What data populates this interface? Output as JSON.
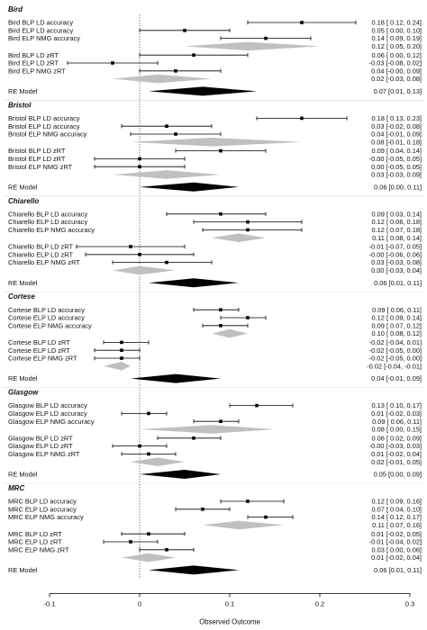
{
  "chart_data": {
    "type": "forest",
    "xlabel": "Observed Outcome",
    "xlim": [
      -0.1,
      0.3
    ],
    "x_ticks": [
      "-0.1",
      "0",
      "0.1",
      "0.2",
      "0.3"
    ],
    "reference_line": 0,
    "colors": {
      "point": "#000000",
      "subtotal_diamond": "#c0c0c0",
      "re_diamond": "#000000",
      "ref_line": "#666666"
    },
    "groups": [
      {
        "name": "Bird",
        "rows": [
          {
            "label": "Bird BLP LD accuracy",
            "type": "point",
            "est": 0.18,
            "lo": 0.12,
            "hi": 0.24,
            "ci": "0.18 [ 0.12, 0.24]"
          },
          {
            "label": "Bird ELP LD accuracy",
            "type": "point",
            "est": 0.05,
            "lo": 0.0,
            "hi": 0.1,
            "ci": "0.05 [ 0.00, 0.10]"
          },
          {
            "label": "Bird ELP NMG accuracy",
            "type": "point",
            "est": 0.14,
            "lo": 0.09,
            "hi": 0.19,
            "ci": "0.14 [ 0.09, 0.19]"
          },
          {
            "label": "",
            "type": "subtotal",
            "est": 0.12,
            "lo": 0.05,
            "hi": 0.2,
            "ci": "0.12 [ 0.05, 0.20]"
          },
          {
            "label": "Bird BLP LD zRT",
            "type": "point",
            "est": 0.06,
            "lo": 0.0,
            "hi": 0.12,
            "ci": "0.06 [ 0.00, 0.12]"
          },
          {
            "label": "Bird ELP LD zRT",
            "type": "point",
            "est": -0.03,
            "lo": -0.08,
            "hi": 0.02,
            "ci": "-0.03 [-0.08, 0.02]"
          },
          {
            "label": "Bird ELP NMG zRT",
            "type": "point",
            "est": 0.04,
            "lo": 0.0,
            "hi": 0.09,
            "ci": "0.04 [-0.00, 0.09]"
          },
          {
            "label": "",
            "type": "subtotal",
            "est": 0.02,
            "lo": -0.03,
            "hi": 0.08,
            "ci": "0.02 [-0.03, 0.08]"
          },
          {
            "label": "RE Model",
            "type": "re",
            "est": 0.07,
            "lo": 0.01,
            "hi": 0.13,
            "ci": "0.07 [0.01, 0.13]"
          }
        ]
      },
      {
        "name": "Bristol",
        "rows": [
          {
            "label": "Bristol BLP LD accuracy",
            "type": "point",
            "est": 0.18,
            "lo": 0.13,
            "hi": 0.23,
            "ci": "0.18 [ 0.13, 0.23]"
          },
          {
            "label": "Bristol ELP LD accuracy",
            "type": "point",
            "est": 0.03,
            "lo": -0.02,
            "hi": 0.08,
            "ci": "0.03 [-0.02, 0.08]"
          },
          {
            "label": "Bristol ELP NMG accuracy",
            "type": "point",
            "est": 0.04,
            "lo": -0.01,
            "hi": 0.09,
            "ci": "0.04 [-0.01, 0.09]"
          },
          {
            "label": "",
            "type": "subtotal",
            "est": 0.08,
            "lo": -0.01,
            "hi": 0.18,
            "ci": "0.08 [-0.01, 0.18]"
          },
          {
            "label": "Bristol BLP LD zRT",
            "type": "point",
            "est": 0.09,
            "lo": 0.04,
            "hi": 0.14,
            "ci": "0.09 [ 0.04, 0.14]"
          },
          {
            "label": "Bristol ELP LD zRT",
            "type": "point",
            "est": 0.0,
            "lo": -0.05,
            "hi": 0.05,
            "ci": "-0.00 [-0.05, 0.05]"
          },
          {
            "label": "Bristol ELP NMG zRT",
            "type": "point",
            "est": 0.0,
            "lo": -0.05,
            "hi": 0.05,
            "ci": "0.00 [-0.05, 0.05]"
          },
          {
            "label": "",
            "type": "subtotal",
            "est": 0.03,
            "lo": -0.03,
            "hi": 0.09,
            "ci": "0.03 [-0.03, 0.09]"
          },
          {
            "label": "RE Model",
            "type": "re",
            "est": 0.06,
            "lo": 0.0,
            "hi": 0.11,
            "ci": "0.06 [0.00, 0.11]"
          }
        ]
      },
      {
        "name": "Chiarello",
        "rows": [
          {
            "label": "Chiarello BLP LD accuracy",
            "type": "point",
            "est": 0.09,
            "lo": 0.03,
            "hi": 0.14,
            "ci": "0.09 [ 0.03, 0.14]"
          },
          {
            "label": "Chiarello ELP LD accuracy",
            "type": "point",
            "est": 0.12,
            "lo": 0.06,
            "hi": 0.18,
            "ci": "0.12 [ 0.06, 0.18]"
          },
          {
            "label": "Chiarello ELP NMG accuracy",
            "type": "point",
            "est": 0.12,
            "lo": 0.07,
            "hi": 0.18,
            "ci": "0.12 [ 0.07, 0.18]"
          },
          {
            "label": "",
            "type": "subtotal",
            "est": 0.11,
            "lo": 0.08,
            "hi": 0.14,
            "ci": "0.11 [ 0.08, 0.14]"
          },
          {
            "label": "Chiarello BLP LD zRT",
            "type": "point",
            "est": -0.01,
            "lo": -0.07,
            "hi": 0.05,
            "ci": "-0.01 [-0.07, 0.05]"
          },
          {
            "label": "Chiarello ELP LD zRT",
            "type": "point",
            "est": 0.0,
            "lo": -0.06,
            "hi": 0.06,
            "ci": "-0.00 [-0.06, 0.06]"
          },
          {
            "label": "Chiarello ELP NMG zRT",
            "type": "point",
            "est": 0.03,
            "lo": -0.03,
            "hi": 0.08,
            "ci": "0.03 [-0.03, 0.08]"
          },
          {
            "label": "",
            "type": "subtotal",
            "est": 0.0,
            "lo": -0.03,
            "hi": 0.04,
            "ci": "0.00 [-0.03, 0.04]"
          },
          {
            "label": "RE Model",
            "type": "re",
            "est": 0.06,
            "lo": 0.01,
            "hi": 0.11,
            "ci": "0.06 [0.01, 0.11]"
          }
        ]
      },
      {
        "name": "Cortese",
        "rows": [
          {
            "label": "Cortese BLP LD accuracy",
            "type": "point",
            "est": 0.09,
            "lo": 0.06,
            "hi": 0.11,
            "ci": "0.09 [ 0.06, 0.11]"
          },
          {
            "label": "Cortese ELP LD accuracy",
            "type": "point",
            "est": 0.12,
            "lo": 0.09,
            "hi": 0.14,
            "ci": "0.12 [ 0.09, 0.14]"
          },
          {
            "label": "Cortese ELP NMG accuracy",
            "type": "point",
            "est": 0.09,
            "lo": 0.07,
            "hi": 0.12,
            "ci": "0.09 [ 0.07, 0.12]"
          },
          {
            "label": "",
            "type": "subtotal",
            "est": 0.1,
            "lo": 0.08,
            "hi": 0.12,
            "ci": "0.10 [ 0.08, 0.12]"
          },
          {
            "label": "Cortese BLP LD zRT",
            "type": "point",
            "est": -0.02,
            "lo": -0.04,
            "hi": 0.01,
            "ci": "-0.02 [-0.04, 0.01]"
          },
          {
            "label": "Cortese ELP LD zRT",
            "type": "point",
            "est": -0.02,
            "lo": -0.05,
            "hi": 0.0,
            "ci": "-0.02 [-0.05, 0.00]"
          },
          {
            "label": "Cortese ELP NMG zRT",
            "type": "point",
            "est": -0.02,
            "lo": -0.05,
            "hi": 0.0,
            "ci": "-0.02 [-0.05, 0.00]"
          },
          {
            "label": "",
            "type": "subtotal",
            "est": -0.02,
            "lo": -0.04,
            "hi": -0.01,
            "ci": "-0.02 [-0.04, -0.01]"
          },
          {
            "label": "RE Model",
            "type": "re",
            "est": 0.04,
            "lo": -0.01,
            "hi": 0.09,
            "ci": "0.04 [-0.01, 0.09]"
          }
        ]
      },
      {
        "name": "Glasgow",
        "rows": [
          {
            "label": "Glasgow BLP LD accuracy",
            "type": "point",
            "est": 0.13,
            "lo": 0.1,
            "hi": 0.17,
            "ci": "0.13 [ 0.10, 0.17]"
          },
          {
            "label": "Glasgow ELP LD accuracy",
            "type": "point",
            "est": 0.01,
            "lo": -0.02,
            "hi": 0.03,
            "ci": "0.01 [-0.02, 0.03]"
          },
          {
            "label": "Glasgow ELP NMG accuracy",
            "type": "point",
            "est": 0.09,
            "lo": 0.06,
            "hi": 0.11,
            "ci": "0.09 [ 0.06, 0.11]"
          },
          {
            "label": "",
            "type": "subtotal",
            "est": 0.08,
            "lo": 0.0,
            "hi": 0.15,
            "ci": "0.08 [ 0.00, 0.15]"
          },
          {
            "label": "Glasgow BLP LD zRT",
            "type": "point",
            "est": 0.06,
            "lo": 0.02,
            "hi": 0.09,
            "ci": "0.06 [ 0.02, 0.09]"
          },
          {
            "label": "Glasgow ELP LD zRT",
            "type": "point",
            "est": 0.0,
            "lo": -0.03,
            "hi": 0.03,
            "ci": "-0.00 [-0.03, 0.03]"
          },
          {
            "label": "Glasgow ELP NMG zRT",
            "type": "point",
            "est": 0.01,
            "lo": -0.02,
            "hi": 0.04,
            "ci": "0.01 [-0.02, 0.04]"
          },
          {
            "label": "",
            "type": "subtotal",
            "est": 0.02,
            "lo": -0.01,
            "hi": 0.05,
            "ci": "0.02 [-0.01, 0.05]"
          },
          {
            "label": "RE Model",
            "type": "re",
            "est": 0.05,
            "lo": 0.0,
            "hi": 0.09,
            "ci": "0.05 [0.00, 0.09]"
          }
        ]
      },
      {
        "name": "MRC",
        "rows": [
          {
            "label": "MRC BLP LD accuracy",
            "type": "point",
            "est": 0.12,
            "lo": 0.09,
            "hi": 0.16,
            "ci": "0.12 [ 0.09, 0.16]"
          },
          {
            "label": "MRC ELP LD accuracy",
            "type": "point",
            "est": 0.07,
            "lo": 0.04,
            "hi": 0.1,
            "ci": "0.07 [ 0.04, 0.10]"
          },
          {
            "label": "MRC ELP NMG accuracy",
            "type": "point",
            "est": 0.14,
            "lo": 0.12,
            "hi": 0.17,
            "ci": "0.14 [ 0.12, 0.17]"
          },
          {
            "label": "",
            "type": "subtotal",
            "est": 0.11,
            "lo": 0.07,
            "hi": 0.16,
            "ci": "0.11 [ 0.07, 0.16]"
          },
          {
            "label": "MRC BLP LD zRT",
            "type": "point",
            "est": 0.01,
            "lo": -0.02,
            "hi": 0.05,
            "ci": "0.01 [-0.02, 0.05]"
          },
          {
            "label": "MRC ELP LD zRT",
            "type": "point",
            "est": -0.01,
            "lo": -0.04,
            "hi": 0.02,
            "ci": "-0.01 [-0.04, 0.02]"
          },
          {
            "label": "MRC ELP NMG zRT",
            "type": "point",
            "est": 0.03,
            "lo": 0.0,
            "hi": 0.06,
            "ci": "0.03 [ 0.00, 0.06]"
          },
          {
            "label": "",
            "type": "subtotal",
            "est": 0.01,
            "lo": -0.02,
            "hi": 0.04,
            "ci": "0.01 [-0.02, 0.04]"
          },
          {
            "label": "RE Model",
            "type": "re",
            "est": 0.06,
            "lo": 0.01,
            "hi": 0.11,
            "ci": "0.06 [0.01, 0.11]"
          }
        ]
      }
    ]
  }
}
